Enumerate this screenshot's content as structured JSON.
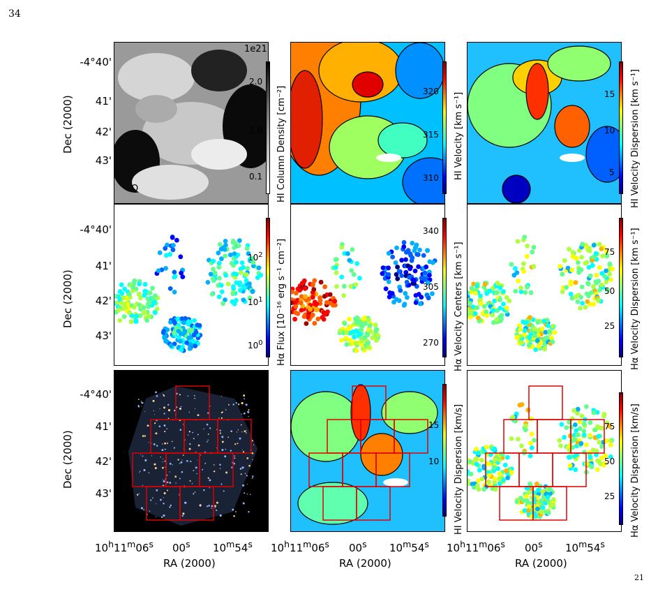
{
  "page": {
    "number": "34",
    "footer": "21"
  },
  "axes": {
    "ylabel": "Dec (2000)",
    "xlabel": "RA (2000)",
    "yticks": [
      "-4°40'",
      "41'",
      "42'",
      "43'"
    ],
    "xticks_html": [
      "10<sup>h</sup>11<sup>m</sup>06<sup>s</sup>",
      "00<sup>s</sup>",
      "10<sup>m</sup>54<sup>s</sup>"
    ]
  },
  "panels": [
    {
      "id": "hi-column-density",
      "colorbar_label": "HI Column Density [cm⁻²]",
      "colorbar_ticks": [
        "2.0",
        "1.0",
        "0.1"
      ],
      "offset_text": "1e21",
      "beam_marker": "O",
      "colormap": "greys"
    },
    {
      "id": "hi-velocity",
      "colorbar_label": "HI Velocity [km s⁻¹]",
      "colorbar_ticks": [
        "320",
        "315",
        "310"
      ],
      "colormap": "jet"
    },
    {
      "id": "hi-velocity-dispersion",
      "colorbar_label": "HI Velocity Dispersion [km s⁻¹]",
      "colorbar_ticks": [
        "15",
        "10",
        "5"
      ],
      "colormap": "jet"
    },
    {
      "id": "halpha-flux",
      "colorbar_label": "Hα Flux [10⁻¹⁶ erg s⁻¹ cm⁻²]",
      "colorbar_ticks_html": [
        "10<sup>2</sup>",
        "10<sup>1</sup>",
        "10<sup>0</sup>"
      ],
      "colormap": "jet"
    },
    {
      "id": "halpha-velocity-centers",
      "colorbar_label": "Hα Velocity Centers [km s⁻¹]",
      "colorbar_ticks": [
        "340",
        "305",
        "270"
      ],
      "colormap": "jet"
    },
    {
      "id": "halpha-velocity-dispersion",
      "colorbar_label": "Hα Velocity Dispersion [km s⁻¹]",
      "colorbar_ticks": [
        "75",
        "50",
        "25"
      ],
      "colormap": "jet"
    },
    {
      "id": "optical-image-fields",
      "colormap": "none"
    },
    {
      "id": "hi-dispersion-fields",
      "colorbar_label": "HI Velocity Dispersion [km/s]",
      "colorbar_ticks": [
        "15",
        "10"
      ],
      "colormap": "jet"
    },
    {
      "id": "halpha-dispersion-fields",
      "colorbar_label": "Hα Velocity Dispersion [km/s]",
      "colorbar_ticks": [
        "75",
        "50",
        "25"
      ],
      "colormap": "jet"
    }
  ]
}
